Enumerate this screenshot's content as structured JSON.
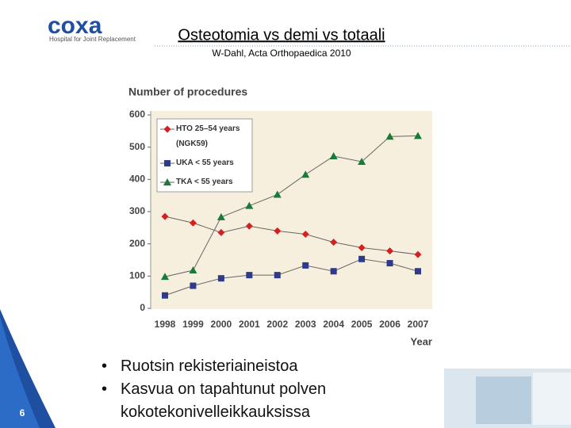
{
  "slide": {
    "logo": "coxa",
    "logo_tagline": "Hospital for Joint Replacement",
    "title": "Osteotomia vs demi vs totaali",
    "subtitle": "W-Dahl, Acta Orthopaedica 2010",
    "bullets": [
      "Ruotsin rekisteriaineistoa",
      "Kasvua on tapahtunut polven kokotekonivelleikkauksissa"
    ],
    "page_number": "6"
  },
  "chart_data": {
    "type": "line",
    "y_label": "Number of procedures",
    "x_label": "Year",
    "categories": [
      "1998",
      "1999",
      "2000",
      "2001",
      "2002",
      "2003",
      "2004",
      "2005",
      "2006",
      "2007"
    ],
    "series": [
      {
        "name": "HTO 25–54 years (NGK59)",
        "color": "#d62020",
        "marker": "diamond",
        "values": [
          285,
          265,
          235,
          255,
          240,
          230,
          205,
          188,
          178,
          167
        ]
      },
      {
        "name": "UKA < 55 years",
        "color": "#2e3a8c",
        "marker": "square",
        "values": [
          40,
          70,
          93,
          103,
          103,
          133,
          115,
          153,
          140,
          115
        ]
      },
      {
        "name": "TKA < 55 years",
        "color": "#1a7a3a",
        "marker": "triangle",
        "values": [
          98,
          118,
          283,
          318,
          353,
          415,
          472,
          455,
          533,
          535
        ]
      }
    ],
    "ylim": [
      0,
      600
    ],
    "yticks": [
      0,
      100,
      200,
      300,
      400,
      500,
      600
    ],
    "legend": "upper left"
  }
}
